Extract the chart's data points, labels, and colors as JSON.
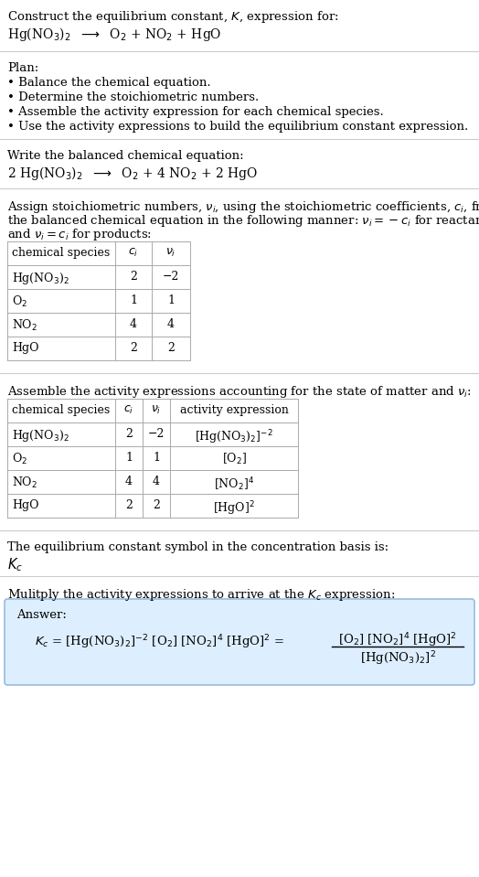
{
  "title_line1": "Construct the equilibrium constant, $K$, expression for:",
  "title_line2": "Hg(NO$_3$)$_2$  $\\longrightarrow$  O$_2$ + NO$_2$ + HgO",
  "plan_header": "Plan:",
  "plan_items": [
    "• Balance the chemical equation.",
    "• Determine the stoichiometric numbers.",
    "• Assemble the activity expression for each chemical species.",
    "• Use the activity expressions to build the equilibrium constant expression."
  ],
  "balanced_header": "Write the balanced chemical equation:",
  "balanced_eq": "2 Hg(NO$_3$)$_2$  $\\longrightarrow$  O$_2$ + 4 NO$_2$ + 2 HgO",
  "stoich_intro1": "Assign stoichiometric numbers, $\\nu_i$, using the stoichiometric coefficients, $c_i$, from",
  "stoich_intro2": "the balanced chemical equation in the following manner: $\\nu_i = -c_i$ for reactants",
  "stoich_intro3": "and $\\nu_i = c_i$ for products:",
  "table1_headers": [
    "chemical species",
    "$c_i$",
    "$\\nu_i$"
  ],
  "table1_rows": [
    [
      "Hg(NO$_3$)$_2$",
      "2",
      "−2"
    ],
    [
      "O$_2$",
      "1",
      "1"
    ],
    [
      "NO$_2$",
      "4",
      "4"
    ],
    [
      "HgO",
      "2",
      "2"
    ]
  ],
  "activity_intro": "Assemble the activity expressions accounting for the state of matter and $\\nu_i$:",
  "table2_headers": [
    "chemical species",
    "$c_i$",
    "$\\nu_i$",
    "activity expression"
  ],
  "table2_rows": [
    [
      "Hg(NO$_3$)$_2$",
      "2",
      "−2",
      "[Hg(NO$_3$)$_2$]$^{-2}$"
    ],
    [
      "O$_2$",
      "1",
      "1",
      "[O$_2$]"
    ],
    [
      "NO$_2$",
      "4",
      "4",
      "[NO$_2$]$^4$"
    ],
    [
      "HgO",
      "2",
      "2",
      "[HgO]$^2$"
    ]
  ],
  "kc_intro": "The equilibrium constant symbol in the concentration basis is:",
  "kc_symbol": "$K_c$",
  "multiply_intro": "Mulitply the activity expressions to arrive at the $K_c$ expression:",
  "answer_label": "Answer:",
  "kc_eq_main": "$K_c$ = [Hg(NO$_3$)$_2$]$^{-2}$ [O$_2$] [NO$_2$]$^4$ [HgO]$^2$ =",
  "kc_frac_num": "[O$_2$] [NO$_2$]$^4$ [HgO]$^2$",
  "kc_frac_den": "[Hg(NO$_3$)$_2$]$^2$",
  "bg_color": "#ffffff",
  "text_color": "#000000",
  "line_color": "#cccccc",
  "table_color": "#aaaaaa",
  "answer_bg": "#ddeeff",
  "answer_border": "#99bbdd"
}
